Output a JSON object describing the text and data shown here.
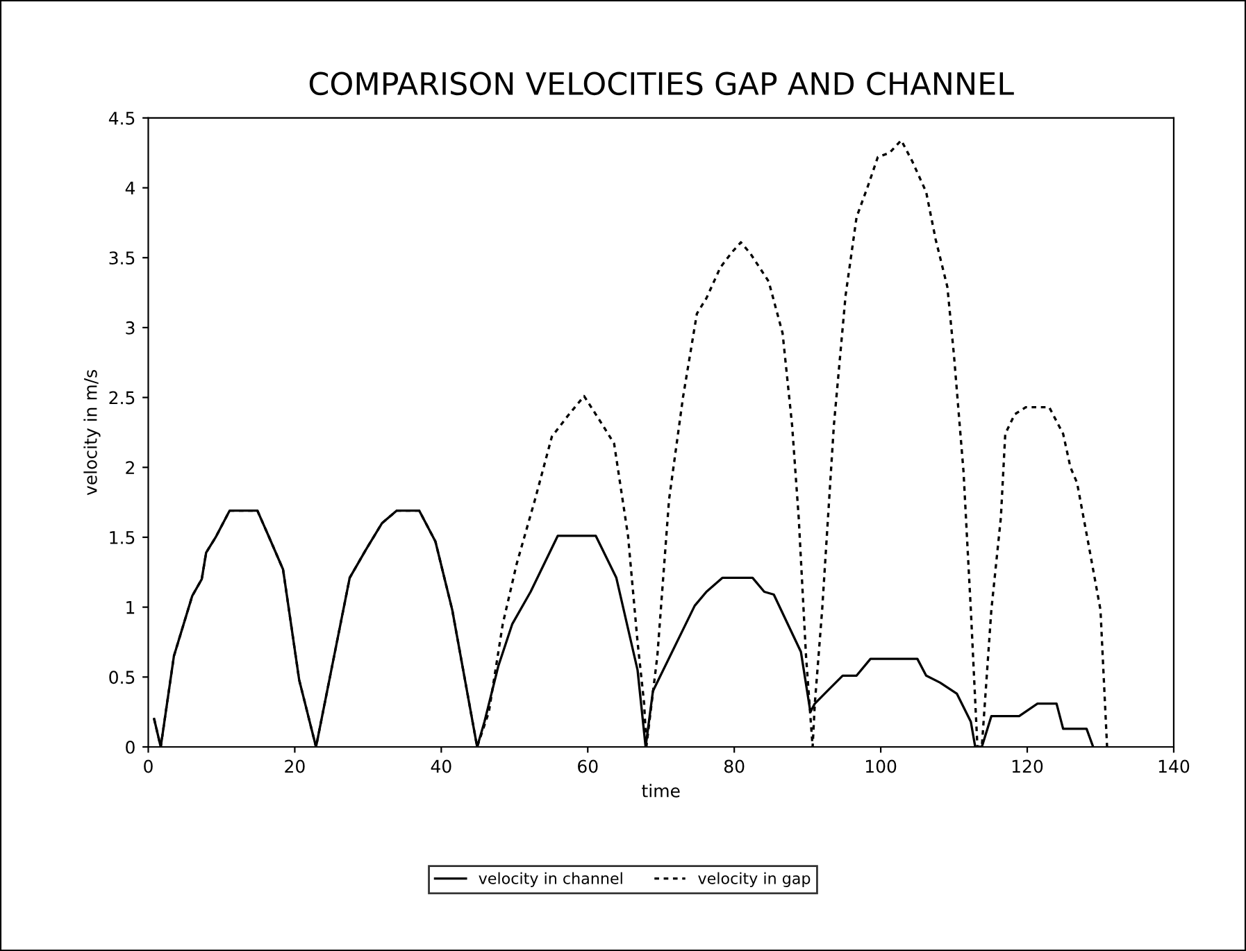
{
  "chart_data": {
    "type": "line",
    "title": "COMPARISON VELOCITIES GAP AND CHANNEL",
    "xlabel": "time",
    "ylabel": "velocity in m/s",
    "xlim": [
      0,
      140
    ],
    "xticks": [
      0,
      20,
      40,
      60,
      80,
      100,
      120,
      140
    ],
    "ylim": [
      0,
      4.5
    ],
    "yticks": [
      0,
      0.5,
      1,
      1.5,
      2,
      2.5,
      3,
      3.5,
      4,
      4.5
    ],
    "grid": false,
    "legend": "bottom",
    "marker": "none",
    "series": [
      {
        "name": "velocity in channel",
        "color": "#000000",
        "line_style": "solid",
        "x": [
          0.8,
          1.7,
          3.5,
          6,
          7.3,
          7.9,
          9.2,
          11.1,
          14.9,
          16.5,
          18.4,
          20.6,
          22.9,
          25.6,
          27.5,
          29.7,
          31.9,
          33.9,
          37,
          39.2,
          41.5,
          44.9,
          45.9,
          47.8,
          49.7,
          52.2,
          55.9,
          61.1,
          63.9,
          66.8,
          67.9,
          68.9,
          74.6,
          76.2,
          78.4,
          82.5,
          84.1,
          85.4,
          89.1,
          90.4,
          91,
          92.9,
          94.8,
          96.7,
          98.6,
          105,
          106.2,
          108.1,
          110.4,
          112.3,
          112.9,
          113.8,
          115.1,
          118.9,
          121.4,
          124,
          124.9,
          128.1,
          129
        ],
        "values": [
          0.2,
          0,
          0.65,
          1.08,
          1.2,
          1.39,
          1.5,
          1.69,
          1.69,
          1.5,
          1.27,
          0.48,
          0,
          0.71,
          1.21,
          1.41,
          1.6,
          1.69,
          1.69,
          1.47,
          0.98,
          0,
          0.18,
          0.58,
          0.88,
          1.11,
          1.51,
          1.51,
          1.21,
          0.55,
          0,
          0.4,
          1.01,
          1.11,
          1.21,
          1.21,
          1.11,
          1.09,
          0.68,
          0.25,
          0.31,
          0.41,
          0.51,
          0.51,
          0.63,
          0.63,
          0.51,
          0.46,
          0.38,
          0.18,
          0,
          0,
          0.22,
          0.22,
          0.31,
          0.31,
          0.13,
          0.13,
          0
        ]
      },
      {
        "name": "velocity in gap",
        "color": "#000000",
        "line_style": "dotted",
        "x": [
          0.8,
          1.7,
          3.5,
          6,
          7.3,
          7.9,
          9.2,
          11.1,
          14.9,
          16.5,
          18.4,
          20.6,
          22.9,
          25.6,
          27.5,
          29.7,
          31.9,
          33.9,
          37,
          39.2,
          41.5,
          44.9,
          46.5,
          48.4,
          50.3,
          52.8,
          55.1,
          57.3,
          59.5,
          61.7,
          63.6,
          65.5,
          66.8,
          67.7,
          68,
          69.5,
          71.1,
          73,
          74.9,
          76.2,
          78.1,
          79.7,
          80.9,
          82.2,
          84.7,
          86.6,
          87.9,
          88.8,
          89.8,
          90.7,
          91,
          92,
          93.6,
          95.2,
          96.7,
          98.3,
          99.6,
          101.2,
          102.8,
          104.3,
          106.2,
          107.5,
          109.1,
          110,
          111.3,
          112.3,
          113.2,
          113.8,
          115.1,
          116.4,
          117,
          118.3,
          119.8,
          123,
          124.9,
          125.9,
          126.8,
          128.4,
          130,
          130.9
        ],
        "values": [
          0.2,
          0,
          0.65,
          1.08,
          1.2,
          1.39,
          1.5,
          1.69,
          1.69,
          1.5,
          1.27,
          0.48,
          0,
          0.71,
          1.21,
          1.41,
          1.6,
          1.69,
          1.69,
          1.47,
          0.98,
          0,
          0.25,
          0.88,
          1.31,
          1.77,
          2.22,
          2.37,
          2.51,
          2.33,
          2.17,
          1.51,
          0.75,
          0.31,
          0,
          0.65,
          1.77,
          2.5,
          3.1,
          3.21,
          3.43,
          3.54,
          3.61,
          3.53,
          3.33,
          2.96,
          2.3,
          1.64,
          0.65,
          0,
          0.31,
          0.98,
          2.3,
          3.23,
          3.79,
          4.02,
          4.22,
          4.25,
          4.34,
          4.19,
          3.97,
          3.63,
          3.29,
          2.8,
          1.97,
          0.98,
          0,
          0,
          0.98,
          1.64,
          2.24,
          2.38,
          2.43,
          2.43,
          2.24,
          2.0,
          1.89,
          1.44,
          0.98,
          0
        ]
      }
    ]
  }
}
